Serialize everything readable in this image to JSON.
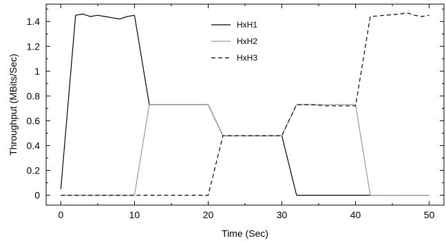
{
  "chart_data": {
    "type": "line",
    "title": "",
    "xlabel": "Time (Sec)",
    "ylabel": "Throughput (MBits/Sec)",
    "xlim": [
      -2,
      52
    ],
    "ylim": [
      -0.08,
      1.54
    ],
    "xticks": [
      0,
      10,
      20,
      30,
      40,
      50
    ],
    "yticks": [
      0,
      0.2,
      0.4,
      0.6,
      0.8,
      1,
      1.2,
      1.4
    ],
    "xtick_labels": [
      "0",
      "10",
      "20",
      "30",
      "40",
      "50"
    ],
    "ytick_labels": [
      "0",
      "0.2",
      "0.4",
      "0.6",
      "0.8",
      "1",
      "1.2",
      "1.4"
    ],
    "grid": false,
    "legend_position": "top-center",
    "series": [
      {
        "name": "HxH1",
        "color": "#000000",
        "dash": "solid",
        "points": [
          [
            0,
            0.05
          ],
          [
            2,
            1.45
          ],
          [
            3,
            1.46
          ],
          [
            4,
            1.44
          ],
          [
            5,
            1.45
          ],
          [
            6,
            1.44
          ],
          [
            7,
            1.43
          ],
          [
            8,
            1.42
          ],
          [
            9,
            1.44
          ],
          [
            10,
            1.45
          ],
          [
            12,
            0.73
          ],
          [
            14,
            0.73
          ],
          [
            16,
            0.73
          ],
          [
            18,
            0.73
          ],
          [
            20,
            0.73
          ],
          [
            22,
            0.48
          ],
          [
            24,
            0.48
          ],
          [
            26,
            0.48
          ],
          [
            28,
            0.48
          ],
          [
            30,
            0.48
          ],
          [
            32,
            0.0
          ],
          [
            50,
            0.0
          ]
        ]
      },
      {
        "name": "HxH2",
        "color": "#999999",
        "dash": "solid",
        "points": [
          [
            0,
            0.0
          ],
          [
            10,
            0.0
          ],
          [
            12,
            0.73
          ],
          [
            14,
            0.73
          ],
          [
            16,
            0.73
          ],
          [
            18,
            0.73
          ],
          [
            20,
            0.73
          ],
          [
            22,
            0.48
          ],
          [
            24,
            0.48
          ],
          [
            26,
            0.48
          ],
          [
            28,
            0.48
          ],
          [
            30,
            0.48
          ],
          [
            32,
            0.73
          ],
          [
            34,
            0.73
          ],
          [
            36,
            0.73
          ],
          [
            38,
            0.73
          ],
          [
            40,
            0.73
          ],
          [
            42,
            0.0
          ],
          [
            50,
            0.0
          ]
        ]
      },
      {
        "name": "HxH3",
        "color": "#000000",
        "dash": "dashed",
        "points": [
          [
            0,
            0.0
          ],
          [
            20,
            0.0
          ],
          [
            22,
            0.48
          ],
          [
            24,
            0.48
          ],
          [
            26,
            0.48
          ],
          [
            28,
            0.48
          ],
          [
            30,
            0.48
          ],
          [
            32,
            0.73
          ],
          [
            34,
            0.73
          ],
          [
            36,
            0.72
          ],
          [
            38,
            0.72
          ],
          [
            40,
            0.72
          ],
          [
            42,
            1.44
          ],
          [
            44,
            1.45
          ],
          [
            46,
            1.46
          ],
          [
            47,
            1.47
          ],
          [
            48,
            1.45
          ],
          [
            49,
            1.44
          ],
          [
            50,
            1.45
          ]
        ]
      }
    ]
  }
}
